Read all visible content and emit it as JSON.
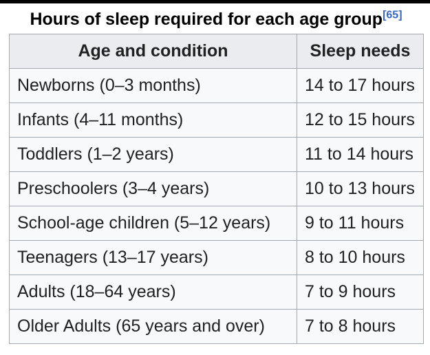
{
  "page": {
    "caption": "Hours of sleep required for each age group",
    "citation": "[65]"
  },
  "table": {
    "headers": {
      "age": "Age and condition",
      "sleep": "Sleep needs"
    },
    "rows": [
      {
        "age": "Newborns (0–3 months)",
        "sleep": "14 to 17 hours"
      },
      {
        "age": "Infants (4–11 months)",
        "sleep": "12 to 15 hours"
      },
      {
        "age": "Toddlers (1–2 years)",
        "sleep": "11 to 14 hours"
      },
      {
        "age": "Preschoolers (3–4 years)",
        "sleep": "10 to 13 hours"
      },
      {
        "age": "School-age children (5–12 years)",
        "sleep": "9 to 11 hours"
      },
      {
        "age": "Teenagers (13–17 years)",
        "sleep": "8 to 10 hours"
      },
      {
        "age": "Adults (18–64 years)",
        "sleep": "7 to 9 hours"
      },
      {
        "age": "Older Adults (65 years and over)",
        "sleep": "7 to 8 hours"
      }
    ]
  },
  "colors": {
    "header_background": "#eaecf0",
    "row_background": "#f8f9fa",
    "border": "#a2a9b1",
    "link": "#3366cc",
    "text": "#202122",
    "top_edge": "#000000"
  },
  "chart_data": {
    "type": "table",
    "title": "Hours of sleep required for each age group",
    "citation": "[65]",
    "columns": [
      "Age and condition",
      "Sleep needs"
    ],
    "categories": [
      "Newborns (0–3 months)",
      "Infants (4–11 months)",
      "Toddlers (1–2 years)",
      "Preschoolers (3–4 years)",
      "School-age children (5–12 years)",
      "Teenagers (13–17 years)",
      "Adults (18–64 years)",
      "Older Adults (65 years and over)"
    ],
    "series": [
      {
        "name": "Sleep needs (min hours)",
        "values": [
          14,
          12,
          11,
          10,
          9,
          8,
          7,
          7
        ]
      },
      {
        "name": "Sleep needs (max hours)",
        "values": [
          17,
          15,
          14,
          13,
          11,
          10,
          9,
          8
        ]
      }
    ],
    "values_text": [
      "14 to 17 hours",
      "12 to 15 hours",
      "11 to 14 hours",
      "10 to 13 hours",
      "9 to 11 hours",
      "8 to 10 hours",
      "7 to 9 hours",
      "7 to 8 hours"
    ]
  }
}
